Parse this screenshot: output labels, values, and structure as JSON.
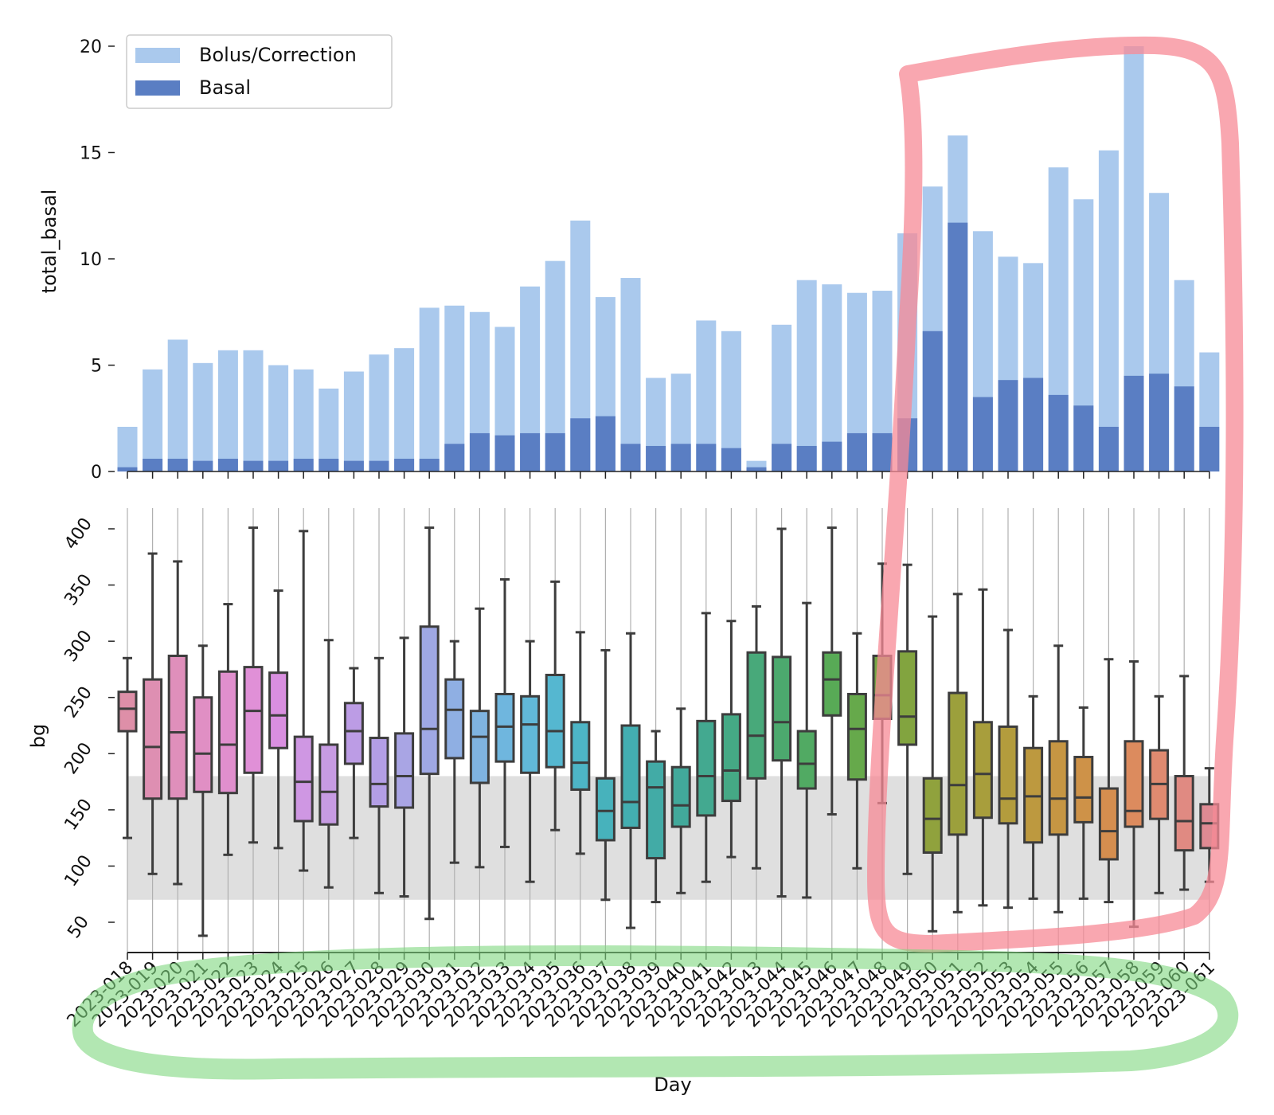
{
  "chart_data": [
    {
      "type": "bar",
      "stacked": "overlay",
      "ylabel": "total_basal",
      "ylim": [
        0,
        20
      ],
      "yticks": [
        0,
        5,
        10,
        15,
        20
      ],
      "legend": {
        "placement": "top-left",
        "entries": [
          {
            "label": "Bolus/Correction",
            "color": "#aac9ed"
          },
          {
            "label": "Basal",
            "color": "#5a7ec3"
          }
        ]
      },
      "categories": [
        "2023-018",
        "2023-019",
        "2023-020",
        "2023-021",
        "2023-022",
        "2023-023",
        "2023-024",
        "2023-025",
        "2023-026",
        "2023-027",
        "2023-028",
        "2023-029",
        "2023-030",
        "2023-031",
        "2023-032",
        "2023-033",
        "2023-034",
        "2023-035",
        "2023-036",
        "2023-037",
        "2023-038",
        "2023-039",
        "2023-040",
        "2023-041",
        "2023-042",
        "2023-043",
        "2023-044",
        "2023-045",
        "2023-046",
        "2023-047",
        "2023-048",
        "2023-049",
        "2023-050",
        "2023-051",
        "2023-052",
        "2023-053",
        "2023-054",
        "2023-055",
        "2023-056",
        "2023-057",
        "2023-058",
        "2023-059",
        "2023-060",
        "2023-061"
      ],
      "series": [
        {
          "name": "Bolus/Correction",
          "color": "#aac9ed",
          "values": [
            2.1,
            4.8,
            6.2,
            5.1,
            5.7,
            5.7,
            5.0,
            4.8,
            3.9,
            4.7,
            5.5,
            5.8,
            7.7,
            7.8,
            7.5,
            6.8,
            8.7,
            9.9,
            11.8,
            8.2,
            9.1,
            4.4,
            4.6,
            7.1,
            6.6,
            0.5,
            6.9,
            9.0,
            8.8,
            8.4,
            8.5,
            11.2,
            13.4,
            15.8,
            11.3,
            10.1,
            9.8,
            14.3,
            12.8,
            15.1,
            20.0,
            13.1,
            9.0,
            5.6
          ]
        },
        {
          "name": "Basal",
          "color": "#5a7ec3",
          "values": [
            0.2,
            0.6,
            0.6,
            0.5,
            0.6,
            0.5,
            0.5,
            0.6,
            0.6,
            0.5,
            0.5,
            0.6,
            0.6,
            1.3,
            1.8,
            1.7,
            1.8,
            1.8,
            2.5,
            2.6,
            1.3,
            1.2,
            1.3,
            1.3,
            1.1,
            0.2,
            1.3,
            1.2,
            1.4,
            1.8,
            1.8,
            2.5,
            6.6,
            11.7,
            3.5,
            4.3,
            4.4,
            3.6,
            3.1,
            2.1,
            4.5,
            4.6,
            4.0,
            2.1
          ]
        }
      ]
    },
    {
      "type": "box",
      "xlabel": "Day",
      "ylabel": "bg",
      "ylim": [
        25,
        420
      ],
      "yticks": [
        50,
        100,
        150,
        200,
        250,
        300,
        350,
        400
      ],
      "target_band": [
        70,
        180
      ],
      "categories": [
        "2023-018",
        "2023-019",
        "2023-020",
        "2023-021",
        "2023-022",
        "2023-023",
        "2023-024",
        "2023-025",
        "2023-026",
        "2023-027",
        "2023-028",
        "2023-029",
        "2023-030",
        "2023-031",
        "2023-032",
        "2023-033",
        "2023-034",
        "2023-035",
        "2023-036",
        "2023-037",
        "2023-038",
        "2023-039",
        "2023-040",
        "2023-041",
        "2023-042",
        "2023-043",
        "2023-044",
        "2023-045",
        "2023-046",
        "2023-047",
        "2023-048",
        "2023-049",
        "2023-050",
        "2023-051",
        "2023-052",
        "2023-053",
        "2023-054",
        "2023-055",
        "2023-056",
        "2023-057",
        "2023-058",
        "2023-059",
        "2023-060",
        "2023-061"
      ],
      "boxes": [
        {
          "min": 125,
          "q1": 220,
          "median": 240,
          "q3": 255,
          "max": 285,
          "color": "#de8fa8"
        },
        {
          "min": 93,
          "q1": 160,
          "median": 206,
          "q3": 266,
          "max": 378,
          "color": "#de8fb2"
        },
        {
          "min": 84,
          "q1": 160,
          "median": 219,
          "q3": 287,
          "max": 371,
          "color": "#df8fbb"
        },
        {
          "min": 38,
          "q1": 166,
          "median": 200,
          "q3": 250,
          "max": 296,
          "color": "#e08fc4"
        },
        {
          "min": 110,
          "q1": 165,
          "median": 208,
          "q3": 273,
          "max": 333,
          "color": "#e08fcd"
        },
        {
          "min": 121,
          "q1": 183,
          "median": 238,
          "q3": 277,
          "max": 401,
          "color": "#e090d7"
        },
        {
          "min": 116,
          "q1": 205,
          "median": 234,
          "q3": 272,
          "max": 345,
          "color": "#d98fe0"
        },
        {
          "min": 96,
          "q1": 140,
          "median": 175,
          "q3": 215,
          "max": 398,
          "color": "#cf97e3"
        },
        {
          "min": 81,
          "q1": 137,
          "median": 166,
          "q3": 208,
          "max": 301,
          "color": "#c79be3"
        },
        {
          "min": 125,
          "q1": 191,
          "median": 220,
          "q3": 245,
          "max": 276,
          "color": "#bc9ce5"
        },
        {
          "min": 76,
          "q1": 153,
          "median": 173,
          "q3": 214,
          "max": 285,
          "color": "#b39ee5"
        },
        {
          "min": 73,
          "q1": 152,
          "median": 180,
          "q3": 218,
          "max": 303,
          "color": "#a9a5e4"
        },
        {
          "min": 53,
          "q1": 182,
          "median": 222,
          "q3": 313,
          "max": 401,
          "color": "#9fa8e4"
        },
        {
          "min": 103,
          "q1": 196,
          "median": 239,
          "q3": 266,
          "max": 300,
          "color": "#8fafe3"
        },
        {
          "min": 99,
          "q1": 174,
          "median": 215,
          "q3": 238,
          "max": 329,
          "color": "#7fb3e0"
        },
        {
          "min": 117,
          "q1": 193,
          "median": 224,
          "q3": 253,
          "max": 355,
          "color": "#6fb6de"
        },
        {
          "min": 86,
          "q1": 183,
          "median": 226,
          "q3": 251,
          "max": 300,
          "color": "#61b8d8"
        },
        {
          "min": 132,
          "q1": 188,
          "median": 220,
          "q3": 270,
          "max": 353,
          "color": "#55b7d0"
        },
        {
          "min": 111,
          "q1": 168,
          "median": 192,
          "q3": 228,
          "max": 308,
          "color": "#4db5c6"
        },
        {
          "min": 70,
          "q1": 123,
          "median": 149,
          "q3": 178,
          "max": 292,
          "color": "#47b2bc"
        },
        {
          "min": 45,
          "q1": 134,
          "median": 157,
          "q3": 225,
          "max": 307,
          "color": "#43aeb1"
        },
        {
          "min": 68,
          "q1": 107,
          "median": 170,
          "q3": 193,
          "max": 220,
          "color": "#42aba6"
        },
        {
          "min": 76,
          "q1": 135,
          "median": 154,
          "q3": 188,
          "max": 240,
          "color": "#42a99b"
        },
        {
          "min": 86,
          "q1": 145,
          "median": 180,
          "q3": 229,
          "max": 325,
          "color": "#43a990"
        },
        {
          "min": 108,
          "q1": 158,
          "median": 185,
          "q3": 235,
          "max": 318,
          "color": "#45a985"
        },
        {
          "min": 98,
          "q1": 178,
          "median": 216,
          "q3": 290,
          "max": 331,
          "color": "#48a97a"
        },
        {
          "min": 73,
          "q1": 194,
          "median": 228,
          "q3": 286,
          "max": 400,
          "color": "#4ca96e"
        },
        {
          "min": 72,
          "q1": 169,
          "median": 191,
          "q3": 220,
          "max": 334,
          "color": "#51aa63"
        },
        {
          "min": 146,
          "q1": 234,
          "median": 266,
          "q3": 290,
          "max": 401,
          "color": "#58aa56"
        },
        {
          "min": 98,
          "q1": 177,
          "median": 222,
          "q3": 253,
          "max": 307,
          "color": "#66a94b"
        },
        {
          "min": 156,
          "q1": 231,
          "median": 252,
          "q3": 287,
          "max": 369,
          "color": "#74a744"
        },
        {
          "min": 93,
          "q1": 208,
          "median": 233,
          "q3": 291,
          "max": 368,
          "color": "#82a43f"
        },
        {
          "min": 42,
          "q1": 112,
          "median": 142,
          "q3": 178,
          "max": 322,
          "color": "#90a23d"
        },
        {
          "min": 59,
          "q1": 128,
          "median": 172,
          "q3": 254,
          "max": 342,
          "color": "#9ca03c"
        },
        {
          "min": 65,
          "q1": 143,
          "median": 182,
          "q3": 228,
          "max": 346,
          "color": "#a89e3c"
        },
        {
          "min": 63,
          "q1": 138,
          "median": 160,
          "q3": 224,
          "max": 310,
          "color": "#b39c3d"
        },
        {
          "min": 71,
          "q1": 121,
          "median": 162,
          "q3": 205,
          "max": 251,
          "color": "#bd993f"
        },
        {
          "min": 59,
          "q1": 128,
          "median": 160,
          "q3": 211,
          "max": 296,
          "color": "#c69643"
        },
        {
          "min": 71,
          "q1": 139,
          "median": 161,
          "q3": 197,
          "max": 241,
          "color": "#ce9248"
        },
        {
          "min": 68,
          "q1": 106,
          "median": 131,
          "q3": 169,
          "max": 284,
          "color": "#d58e4f"
        },
        {
          "min": 46,
          "q1": 135,
          "median": 149,
          "q3": 211,
          "max": 282,
          "color": "#dc8b5e"
        },
        {
          "min": 76,
          "q1": 142,
          "median": 173,
          "q3": 203,
          "max": 251,
          "color": "#df8a70"
        },
        {
          "min": 79,
          "q1": 114,
          "median": 140,
          "q3": 180,
          "max": 269,
          "color": "#e08a82"
        },
        {
          "min": 86,
          "q1": 116,
          "median": 138,
          "q3": 155,
          "max": 187,
          "color": "#df8a93"
        }
      ]
    }
  ],
  "annotations": {
    "red_highlight_color": "#f78a95",
    "green_highlight_color": "#7fd77f"
  }
}
